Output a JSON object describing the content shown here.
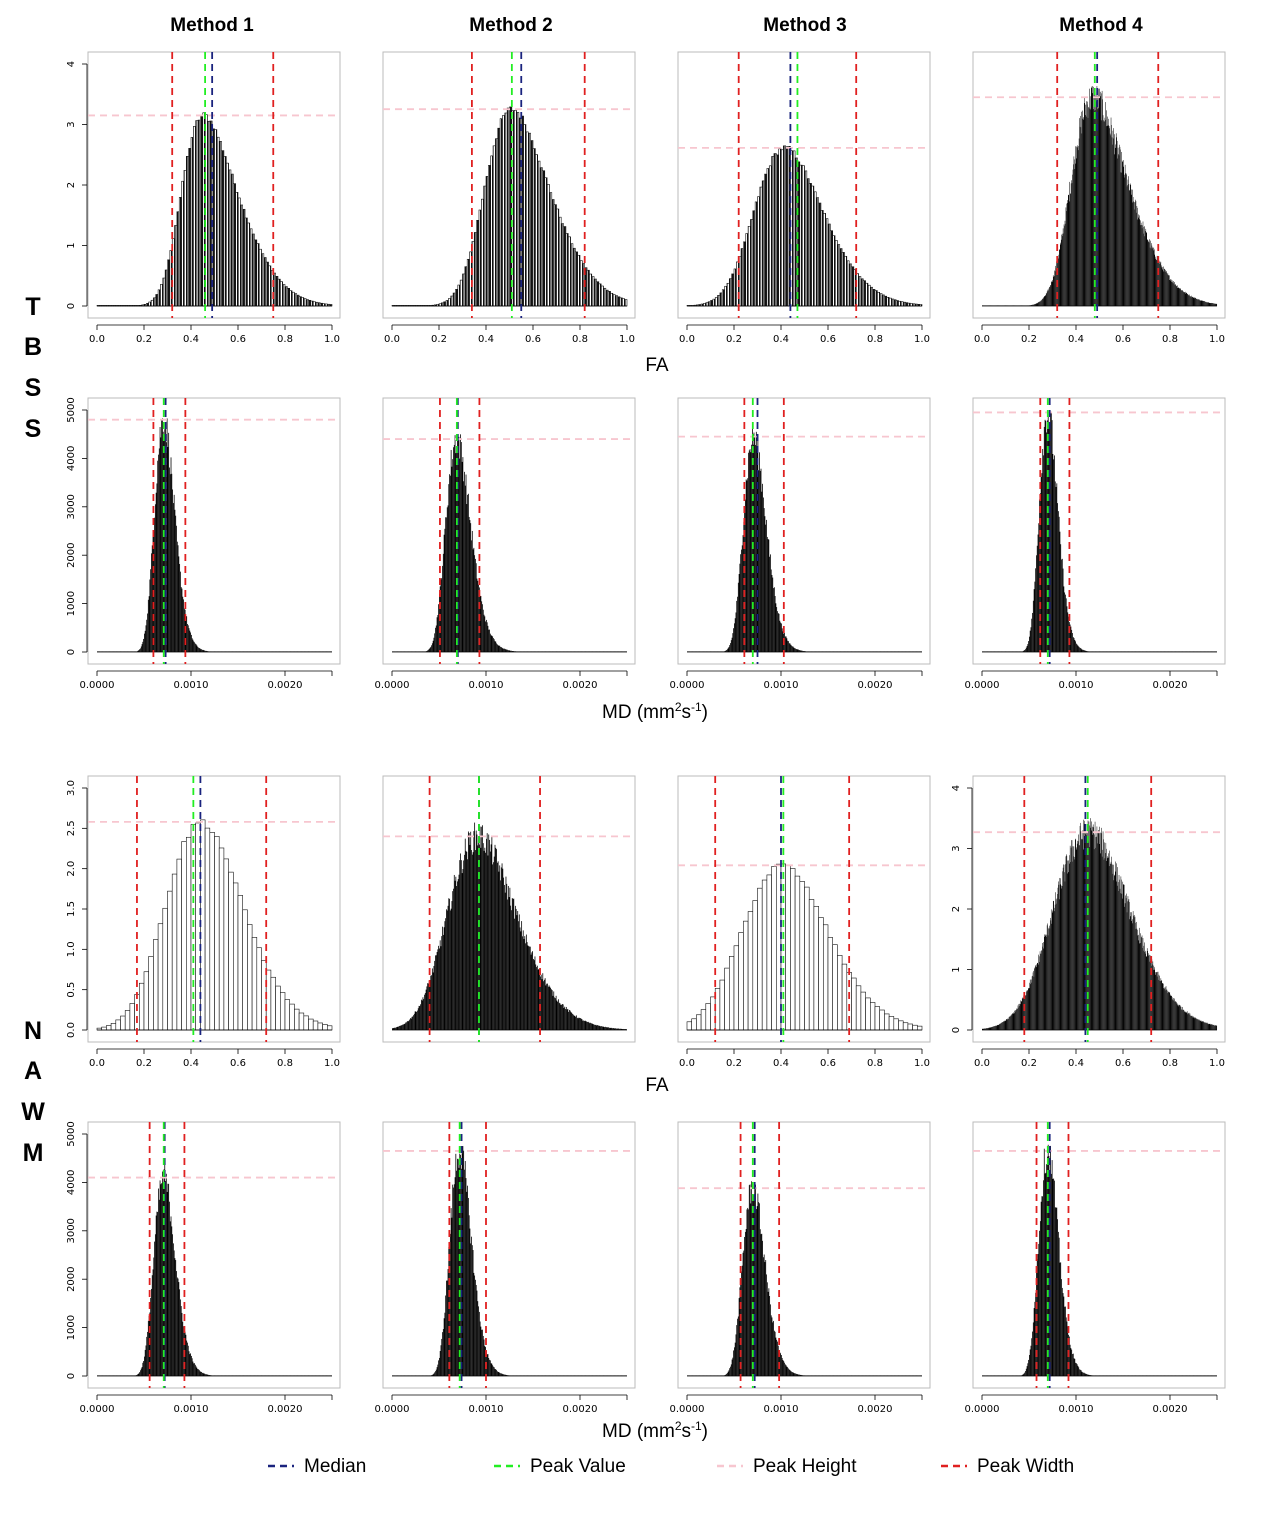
{
  "columns": [
    "Method 1",
    "Method 2",
    "Method 3",
    "Method 4"
  ],
  "row_groups": [
    {
      "name": "TBSS",
      "letters": [
        "T",
        "B",
        "S",
        "S"
      ]
    },
    {
      "name": "NAWM",
      "letters": [
        "N",
        "A",
        "W",
        "M"
      ]
    }
  ],
  "xlabels": {
    "fa": "FA",
    "md_prefix": "MD (mm",
    "md_sup1": "2",
    "md_mid": "s",
    "md_sup2": "-1",
    "md_suffix": ")"
  },
  "legend": [
    {
      "label": "Median",
      "color": "#1a237e"
    },
    {
      "label": "Peak Value",
      "color": "#22ee22"
    },
    {
      "label": "Peak Height",
      "color": "#f7c6cf"
    },
    {
      "label": "Peak Width",
      "color": "#e02020"
    }
  ],
  "colors": {
    "median": "#1a237e",
    "peak_value": "#22ee22",
    "peak_height": "#f7c6cf",
    "peak_width": "#e02020",
    "bars": "#000000",
    "frame": "#bbbbbb"
  },
  "chart_data": [
    {
      "type": "bar",
      "panel": "TBSS-FA-Method 1",
      "variable": "FA",
      "xlim": [
        0,
        1
      ],
      "ylim": [
        0,
        4
      ],
      "xticks": [
        "0.0",
        "0.2",
        "0.4",
        "0.6",
        "0.8",
        "1.0"
      ],
      "yticks": [
        "0",
        "1",
        "2",
        "3",
        "4"
      ],
      "median": 0.49,
      "peak_value": 0.46,
      "peak_height": 3.15,
      "peak_width": [
        0.32,
        0.75
      ],
      "dist": {
        "kind": "skewnormal",
        "loc": 0.36,
        "scale": 0.2,
        "alpha": 3,
        "nbins": 100,
        "fill": "hatch",
        "bar_values_truncated": true
      }
    },
    {
      "type": "bar",
      "panel": "TBSS-FA-Method 2",
      "variable": "FA",
      "xlim": [
        0,
        1
      ],
      "ylim": [
        0,
        3.75
      ],
      "xticks": [
        "0.0",
        "0.2",
        "0.4",
        "0.6",
        "0.8",
        "1.0"
      ],
      "yticks": [],
      "median": 0.55,
      "peak_value": 0.51,
      "peak_height": 3.05,
      "peak_width": [
        0.34,
        0.82
      ],
      "dist": {
        "kind": "skewnormal",
        "loc": 0.4,
        "scale": 0.22,
        "alpha": 2.5,
        "nbins": 100,
        "fill": "hatch",
        "bar_values_truncated": true
      }
    },
    {
      "type": "bar",
      "panel": "TBSS-FA-Method 3",
      "variable": "FA",
      "xlim": [
        0,
        1
      ],
      "ylim": [
        0,
        3.75
      ],
      "xticks": [
        "0.0",
        "0.2",
        "0.4",
        "0.6",
        "0.8",
        "1.0"
      ],
      "yticks": [],
      "median": 0.44,
      "peak_value": 0.47,
      "peak_height": 2.45,
      "peak_width": [
        0.22,
        0.72
      ],
      "dist": {
        "kind": "skewnormal",
        "loc": 0.3,
        "scale": 0.22,
        "alpha": 2,
        "nbins": 100,
        "fill": "hatch",
        "bar_values_truncated": true
      }
    },
    {
      "type": "bar",
      "panel": "TBSS-FA-Method 4",
      "variable": "FA",
      "xlim": [
        0,
        1
      ],
      "ylim": [
        0,
        4
      ],
      "xticks": [
        "0.0",
        "0.2",
        "0.4",
        "0.6",
        "0.8",
        "1.0"
      ],
      "yticks": [],
      "median": 0.49,
      "peak_value": 0.48,
      "peak_height": 3.45,
      "peak_width": [
        0.32,
        0.75
      ],
      "dist": {
        "kind": "skewnormal",
        "loc": 0.38,
        "scale": 0.2,
        "alpha": 3,
        "nbins": 500,
        "fill": "solid",
        "bar_values_truncated": true
      }
    },
    {
      "type": "bar",
      "panel": "TBSS-MD-Method 1",
      "variable": "MD",
      "xlim": [
        0,
        0.0025
      ],
      "ylim": [
        0,
        5000
      ],
      "xticks": [
        "0.0000",
        "0.0010",
        "0.0020"
      ],
      "yticks": [
        "0",
        "1000",
        "2000",
        "3000",
        "4000",
        "5000"
      ],
      "median": 0.00073,
      "peak_value": 0.00071,
      "peak_height": 4800,
      "peak_width": [
        0.0006,
        0.00094
      ],
      "dist": {
        "kind": "lognormal",
        "mode": 0.00071,
        "sigma": 0.15,
        "nbins": 300,
        "fill": "solid",
        "bar_values_truncated": true
      }
    },
    {
      "type": "bar",
      "panel": "TBSS-MD-Method 2",
      "variable": "MD",
      "xlim": [
        0,
        0.0025
      ],
      "ylim": [
        0,
        5000
      ],
      "xticks": [
        "0.0000",
        "0.0010",
        "0.0020"
      ],
      "yticks": [],
      "median": 0.0007,
      "peak_value": 0.00069,
      "peak_height": 4400,
      "peak_width": [
        0.00051,
        0.00093
      ],
      "dist": {
        "kind": "lognormal",
        "mode": 0.00069,
        "sigma": 0.19,
        "nbins": 300,
        "fill": "solid",
        "bar_values_truncated": true
      }
    },
    {
      "type": "bar",
      "panel": "TBSS-MD-Method 3",
      "variable": "MD",
      "xlim": [
        0,
        0.0025
      ],
      "ylim": [
        0,
        5000
      ],
      "xticks": [
        "0.0000",
        "0.0010",
        "0.0020"
      ],
      "yticks": [],
      "median": 0.00075,
      "peak_value": 0.0007,
      "peak_height": 4450,
      "peak_width": [
        0.00061,
        0.00103
      ],
      "dist": {
        "kind": "lognormal",
        "mode": 0.00071,
        "sigma": 0.17,
        "nbins": 300,
        "fill": "solid",
        "bar_values_truncated": true
      }
    },
    {
      "type": "bar",
      "panel": "TBSS-MD-Method 4",
      "variable": "MD",
      "xlim": [
        0,
        0.0025
      ],
      "ylim": [
        0,
        5000
      ],
      "xticks": [
        "0.0000",
        "0.0010",
        "0.0020"
      ],
      "yticks": [],
      "median": 0.00072,
      "peak_value": 0.0007,
      "peak_height": 4950,
      "peak_width": [
        0.00062,
        0.00093
      ],
      "dist": {
        "kind": "lognormal",
        "mode": 0.0007,
        "sigma": 0.14,
        "nbins": 300,
        "fill": "solid",
        "bar_values_truncated": true
      }
    },
    {
      "type": "bar",
      "panel": "NAWM-FA-Method 1",
      "variable": "FA",
      "xlim": [
        0,
        1
      ],
      "ylim": [
        0,
        3
      ],
      "xticks": [
        "0.0",
        "0.2",
        "0.4",
        "0.6",
        "0.8",
        "1.0"
      ],
      "yticks": [
        "0.0",
        "0.5",
        "1.0",
        "1.5",
        "2.0",
        "2.5",
        "3.0"
      ],
      "median": 0.44,
      "peak_value": 0.41,
      "peak_height": 2.58,
      "peak_width": [
        0.17,
        0.72
      ],
      "dist": {
        "kind": "skewnormal",
        "loc": 0.32,
        "scale": 0.23,
        "alpha": 1.6,
        "nbins": 50,
        "fill": "outline",
        "bar_values_truncated": true
      }
    },
    {
      "type": "bar",
      "panel": "NAWM-FA-Method 2",
      "variable": "FA",
      "xlim": [
        0,
        1
      ],
      "ylim": [
        0,
        3.35
      ],
      "xticks": [],
      "yticks": [],
      "median": 0.37,
      "peak_value": 0.37,
      "peak_height": 2.68,
      "peak_width": [
        0.16,
        0.63
      ],
      "dist": {
        "kind": "skewnormal",
        "loc": 0.25,
        "scale": 0.22,
        "alpha": 2,
        "nbins": 300,
        "fill": "solid",
        "bar_values_truncated": true
      }
    },
    {
      "type": "bar",
      "panel": "NAWM-FA-Method 3",
      "variable": "FA",
      "xlim": [
        0,
        1
      ],
      "ylim": [
        0,
        3.35
      ],
      "xticks": [
        "0.0",
        "0.2",
        "0.4",
        "0.6",
        "0.8",
        "1.0"
      ],
      "yticks": [],
      "median": 0.4,
      "peak_value": 0.41,
      "peak_height": 2.28,
      "peak_width": [
        0.12,
        0.69
      ],
      "dist": {
        "kind": "skewnormal",
        "loc": 0.27,
        "scale": 0.25,
        "alpha": 1.5,
        "nbins": 50,
        "fill": "outline",
        "bar_values_truncated": true
      }
    },
    {
      "type": "bar",
      "panel": "NAWM-FA-Method 4",
      "variable": "FA",
      "xlim": [
        0,
        1
      ],
      "ylim": [
        0,
        4
      ],
      "xticks": [
        "0.0",
        "0.2",
        "0.4",
        "0.6",
        "0.8",
        "1.0"
      ],
      "yticks": [
        "0",
        "1",
        "2",
        "3",
        "4"
      ],
      "median": 0.44,
      "peak_value": 0.45,
      "peak_height": 3.27,
      "peak_width": [
        0.18,
        0.72
      ],
      "dist": {
        "kind": "skewnormal",
        "loc": 0.33,
        "scale": 0.23,
        "alpha": 1.6,
        "nbins": 500,
        "fill": "solid",
        "bar_values_truncated": true
      }
    },
    {
      "type": "bar",
      "panel": "NAWM-MD-Method 1",
      "variable": "MD",
      "xlim": [
        0,
        0.0025
      ],
      "ylim": [
        0,
        5000
      ],
      "xticks": [
        "0.0000",
        "0.0010",
        "0.0020"
      ],
      "yticks": [
        "0",
        "1000",
        "2000",
        "3000",
        "4000",
        "5000"
      ],
      "median": 0.00072,
      "peak_value": 0.00071,
      "peak_height": 4100,
      "peak_width": [
        0.00056,
        0.00093
      ],
      "dist": {
        "kind": "lognormal",
        "mode": 0.00071,
        "sigma": 0.16,
        "nbins": 300,
        "fill": "solid",
        "bar_values_truncated": true
      }
    },
    {
      "type": "bar",
      "panel": "NAWM-MD-Method 2",
      "variable": "MD",
      "xlim": [
        0,
        0.0025
      ],
      "ylim": [
        0,
        5000
      ],
      "xticks": [
        "0.0000",
        "0.0010",
        "0.0020"
      ],
      "yticks": [],
      "median": 0.00074,
      "peak_value": 0.00072,
      "peak_height": 4650,
      "peak_width": [
        0.00061,
        0.001
      ],
      "dist": {
        "kind": "lognormal",
        "mode": 0.00072,
        "sigma": 0.16,
        "nbins": 300,
        "fill": "solid",
        "bar_values_truncated": true
      }
    },
    {
      "type": "bar",
      "panel": "NAWM-MD-Method 3",
      "variable": "MD",
      "xlim": [
        0,
        0.0025
      ],
      "ylim": [
        0,
        5000
      ],
      "xticks": [
        "0.0000",
        "0.0010",
        "0.0020"
      ],
      "yticks": [],
      "median": 0.00072,
      "peak_value": 0.0007,
      "peak_height": 3880,
      "peak_width": [
        0.00057,
        0.00098
      ],
      "dist": {
        "kind": "lognormal",
        "mode": 0.0007,
        "sigma": 0.17,
        "nbins": 300,
        "fill": "solid",
        "bar_values_truncated": true
      }
    },
    {
      "type": "bar",
      "panel": "NAWM-MD-Method 4",
      "variable": "MD",
      "xlim": [
        0,
        0.0025
      ],
      "ylim": [
        0,
        5000
      ],
      "xticks": [
        "0.0000",
        "0.0010",
        "0.0020"
      ],
      "yticks": [],
      "median": 0.00072,
      "peak_value": 0.0007,
      "peak_height": 4650,
      "peak_width": [
        0.00058,
        0.00092
      ],
      "dist": {
        "kind": "lognormal",
        "mode": 0.0007,
        "sigma": 0.15,
        "nbins": 300,
        "fill": "solid",
        "bar_values_truncated": true
      }
    }
  ]
}
